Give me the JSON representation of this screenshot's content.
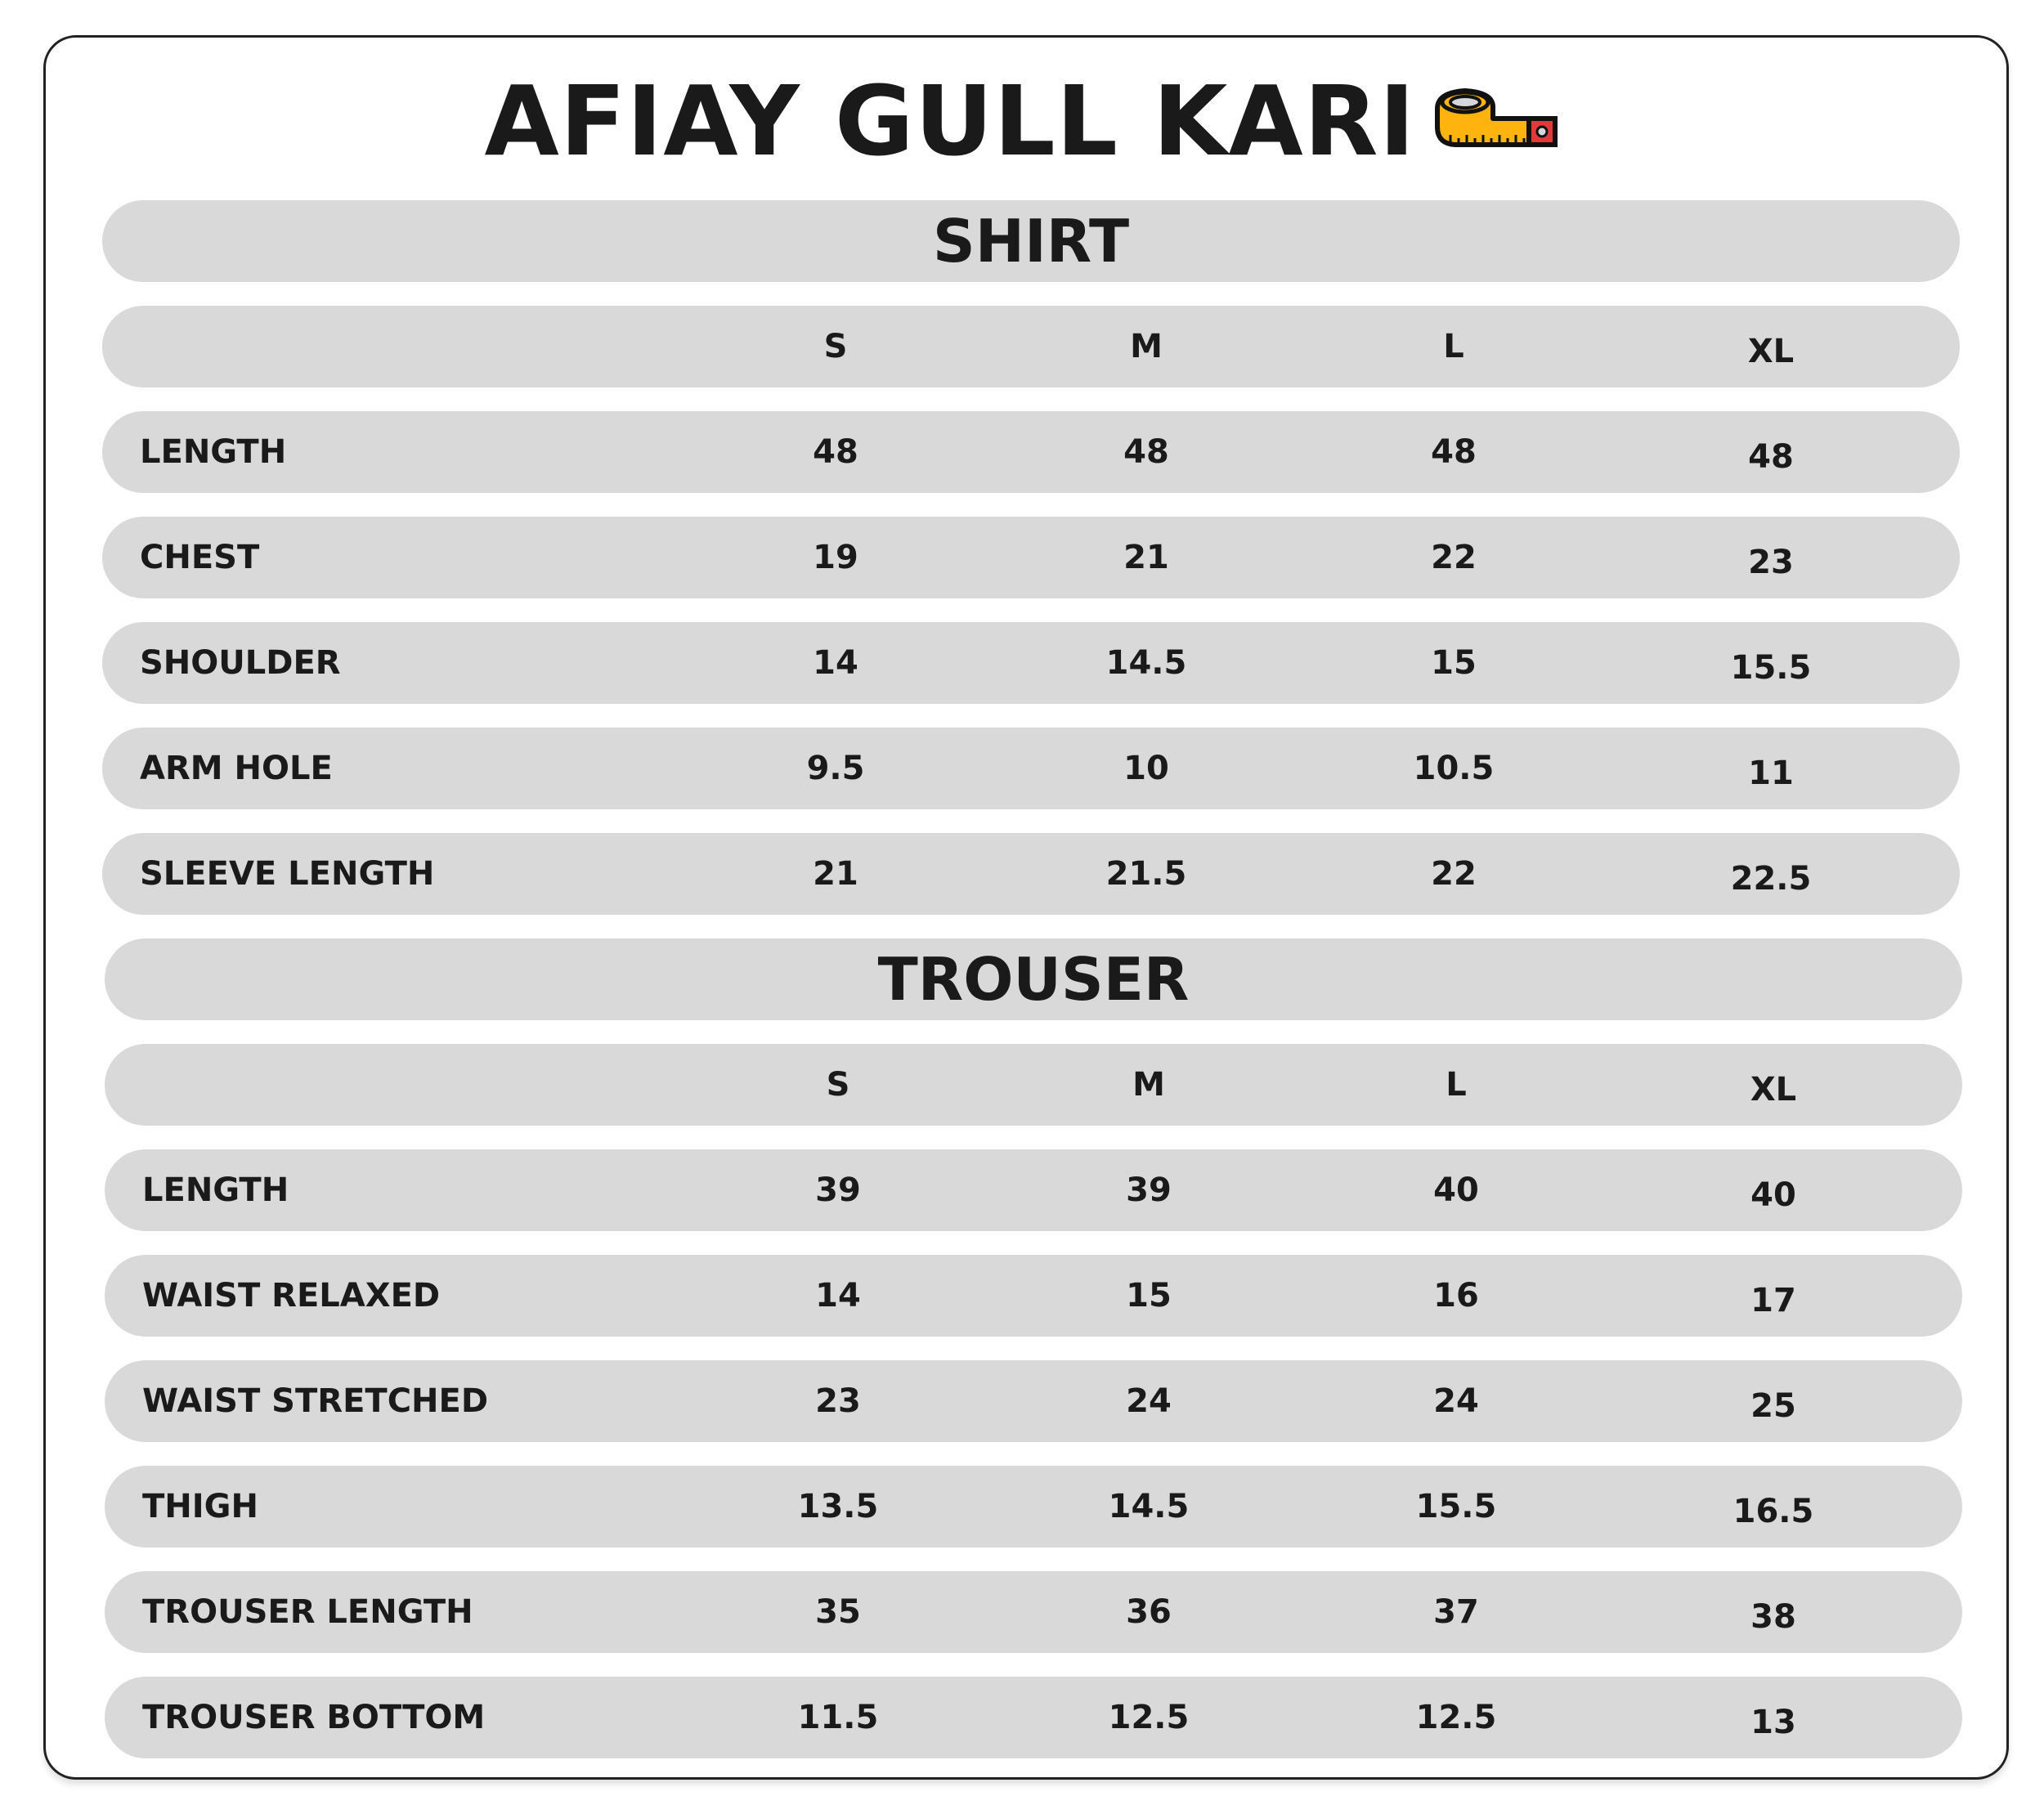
{
  "title": "AFIAY GULL KARI",
  "title_icon": "tape-measure-icon",
  "colors": {
    "row_bg": "#d9d9d9",
    "tape_yellow": "#ffb30f",
    "tape_red": "#e23a3a"
  },
  "sizes": [
    "S",
    "M",
    "L",
    "XL"
  ],
  "shirt": {
    "heading": "SHIRT",
    "rows": [
      {
        "label": "LENGTH",
        "values": [
          "48",
          "48",
          "48",
          "48"
        ]
      },
      {
        "label": "CHEST",
        "values": [
          "19",
          "21",
          "22",
          "23"
        ]
      },
      {
        "label": "SHOULDER",
        "values": [
          "14",
          "14.5",
          "15",
          "15.5"
        ]
      },
      {
        "label": "ARM HOLE",
        "values": [
          "9.5",
          "10",
          "10.5",
          "11"
        ]
      },
      {
        "label": "SLEEVE LENGTH",
        "values": [
          "21",
          "21.5",
          "22",
          "22.5"
        ]
      }
    ]
  },
  "trouser": {
    "heading": "TROUSER",
    "rows": [
      {
        "label": "LENGTH",
        "values": [
          "39",
          "39",
          "40",
          "40"
        ]
      },
      {
        "label": "WAIST RELAXED",
        "values": [
          "14",
          "15",
          "16",
          "17"
        ]
      },
      {
        "label": "WAIST STRETCHED",
        "values": [
          "23",
          "24",
          "24",
          "25"
        ]
      },
      {
        "label": "THIGH",
        "values": [
          "13.5",
          "14.5",
          "15.5",
          "16.5"
        ]
      },
      {
        "label": "TROUSER LENGTH",
        "values": [
          "35",
          "36",
          "37",
          "38"
        ]
      },
      {
        "label": "TROUSER BOTTOM",
        "values": [
          "11.5",
          "12.5",
          "12.5",
          "13"
        ]
      }
    ]
  }
}
